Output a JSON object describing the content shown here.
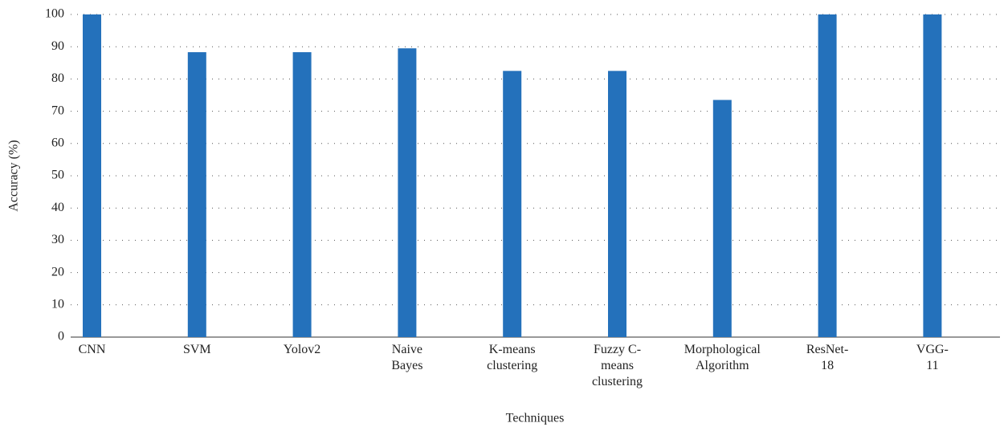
{
  "chart_data": {
    "type": "bar",
    "xlabel": "Techniques",
    "ylabel": "Accuracy (%)",
    "categories": [
      "CNN",
      "SVM",
      "Yolov2",
      "Naive Bayes",
      "K-means clustering",
      "Fuzzy C-means clustering",
      "Morphological Algorithm",
      "ResNet-18",
      "VGG-11"
    ],
    "values": [
      100,
      88.3,
      88.3,
      89.5,
      82.5,
      82.5,
      73.5,
      100,
      100
    ],
    "color": "#2471bb",
    "ylim": [
      0,
      100
    ],
    "yticks": [
      0,
      10,
      20,
      30,
      40,
      50,
      60,
      70,
      80,
      90,
      100
    ],
    "grid": true
  }
}
